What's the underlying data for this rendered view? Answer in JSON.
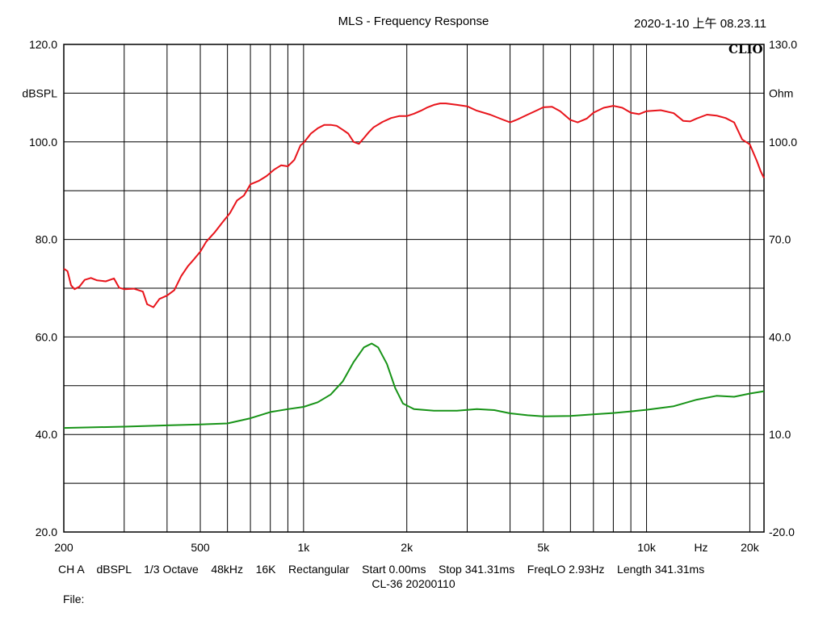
{
  "chart_data": {
    "type": "line",
    "title": "MLS - Frequency Response",
    "timestamp": "2020-1-10 上午 08.23.11",
    "brand": "CLIO",
    "x_scale": "log",
    "xlim": [
      200,
      22000
    ],
    "x_tick_labels": [
      {
        "value": 200,
        "label": "200"
      },
      {
        "value": 500,
        "label": "500"
      },
      {
        "value": 1000,
        "label": "1k"
      },
      {
        "value": 2000,
        "label": "2k"
      },
      {
        "value": 5000,
        "label": "5k"
      },
      {
        "value": 10000,
        "label": "10k"
      },
      {
        "value": 20000,
        "label": "20k"
      }
    ],
    "x_unit_label": "Hz",
    "y_left": {
      "label": "dBSPL",
      "ylim": [
        20,
        120
      ],
      "tick_labels": [
        "120.0",
        "100.0",
        "80.0",
        "60.0",
        "40.0",
        "20.0"
      ]
    },
    "y_right": {
      "label": "Ohm",
      "ylim": [
        -20,
        130
      ],
      "tick_labels": [
        "130.0",
        "100.0",
        "70.0",
        "40.0",
        "10.0",
        "-20.0"
      ]
    },
    "grid": true,
    "series": [
      {
        "axis": "left",
        "color": "#e8141b",
        "points": [
          [
            200,
            74.0
          ],
          [
            205,
            73.5
          ],
          [
            210,
            70.6
          ],
          [
            215,
            69.8
          ],
          [
            222,
            70.3
          ],
          [
            230,
            71.7
          ],
          [
            240,
            72.1
          ],
          [
            250,
            71.6
          ],
          [
            265,
            71.4
          ],
          [
            280,
            72.0
          ],
          [
            290,
            70.1
          ],
          [
            300,
            69.8
          ],
          [
            320,
            69.9
          ],
          [
            340,
            69.3
          ],
          [
            350,
            66.7
          ],
          [
            365,
            66.1
          ],
          [
            380,
            67.8
          ],
          [
            400,
            68.5
          ],
          [
            420,
            69.6
          ],
          [
            440,
            72.5
          ],
          [
            460,
            74.5
          ],
          [
            480,
            76.0
          ],
          [
            500,
            77.5
          ],
          [
            520,
            79.5
          ],
          [
            550,
            81.4
          ],
          [
            580,
            83.5
          ],
          [
            610,
            85.4
          ],
          [
            640,
            88.0
          ],
          [
            670,
            89.0
          ],
          [
            700,
            91.3
          ],
          [
            740,
            92.0
          ],
          [
            780,
            93.0
          ],
          [
            820,
            94.3
          ],
          [
            860,
            95.2
          ],
          [
            900,
            95.0
          ],
          [
            940,
            96.3
          ],
          [
            980,
            99.3
          ],
          [
            1000,
            99.8
          ],
          [
            1050,
            101.7
          ],
          [
            1100,
            102.8
          ],
          [
            1150,
            103.5
          ],
          [
            1200,
            103.5
          ],
          [
            1250,
            103.3
          ],
          [
            1300,
            102.5
          ],
          [
            1350,
            101.7
          ],
          [
            1400,
            100.0
          ],
          [
            1450,
            99.6
          ],
          [
            1500,
            100.8
          ],
          [
            1550,
            102.0
          ],
          [
            1600,
            103.0
          ],
          [
            1700,
            104.1
          ],
          [
            1800,
            104.9
          ],
          [
            1900,
            105.3
          ],
          [
            2000,
            105.3
          ],
          [
            2100,
            105.8
          ],
          [
            2200,
            106.4
          ],
          [
            2300,
            107.1
          ],
          [
            2400,
            107.6
          ],
          [
            2500,
            107.9
          ],
          [
            2600,
            107.9
          ],
          [
            2800,
            107.6
          ],
          [
            3000,
            107.3
          ],
          [
            3200,
            106.4
          ],
          [
            3500,
            105.6
          ],
          [
            3800,
            104.6
          ],
          [
            4000,
            104.0
          ],
          [
            4200,
            104.6
          ],
          [
            4500,
            105.6
          ],
          [
            4800,
            106.5
          ],
          [
            5000,
            107.1
          ],
          [
            5300,
            107.2
          ],
          [
            5600,
            106.3
          ],
          [
            6000,
            104.5
          ],
          [
            6300,
            104.0
          ],
          [
            6700,
            104.8
          ],
          [
            7000,
            106.0
          ],
          [
            7500,
            107.0
          ],
          [
            8000,
            107.4
          ],
          [
            8500,
            107.0
          ],
          [
            9000,
            106.0
          ],
          [
            9500,
            105.7
          ],
          [
            10000,
            106.3
          ],
          [
            11000,
            106.5
          ],
          [
            12000,
            105.9
          ],
          [
            12800,
            104.3
          ],
          [
            13400,
            104.2
          ],
          [
            14000,
            104.8
          ],
          [
            15000,
            105.6
          ],
          [
            16000,
            105.4
          ],
          [
            17000,
            104.9
          ],
          [
            18000,
            104.0
          ],
          [
            19000,
            100.5
          ],
          [
            20000,
            99.5
          ],
          [
            21000,
            96.0
          ],
          [
            21500,
            94.0
          ],
          [
            22000,
            92.6
          ]
        ]
      },
      {
        "axis": "right",
        "color": "#179317",
        "points": [
          [
            200,
            12.0
          ],
          [
            300,
            12.4
          ],
          [
            400,
            12.8
          ],
          [
            500,
            13.1
          ],
          [
            600,
            13.4
          ],
          [
            700,
            15.0
          ],
          [
            800,
            16.9
          ],
          [
            900,
            17.8
          ],
          [
            1000,
            18.5
          ],
          [
            1100,
            19.9
          ],
          [
            1200,
            22.3
          ],
          [
            1300,
            26.3
          ],
          [
            1400,
            32.3
          ],
          [
            1500,
            36.8
          ],
          [
            1580,
            38.0
          ],
          [
            1650,
            36.8
          ],
          [
            1750,
            31.7
          ],
          [
            1850,
            24.3
          ],
          [
            1950,
            19.5
          ],
          [
            2100,
            17.8
          ],
          [
            2400,
            17.3
          ],
          [
            2800,
            17.3
          ],
          [
            3200,
            17.8
          ],
          [
            3600,
            17.5
          ],
          [
            4000,
            16.5
          ],
          [
            4500,
            15.9
          ],
          [
            5000,
            15.6
          ],
          [
            6000,
            15.7
          ],
          [
            7000,
            16.2
          ],
          [
            8000,
            16.6
          ],
          [
            9000,
            17.1
          ],
          [
            10000,
            17.6
          ],
          [
            12000,
            18.7
          ],
          [
            14000,
            20.7
          ],
          [
            16000,
            21.9
          ],
          [
            18000,
            21.6
          ],
          [
            20000,
            22.6
          ],
          [
            22000,
            23.3
          ]
        ]
      }
    ]
  },
  "footer": {
    "info": "CH A    dBSPL    1/3 Octave    48kHz    16K    Rectangular    Start 0.00ms    Stop 341.31ms    FreqLO 2.93Hz    Length 341.31ms",
    "id": "CL-36  20200110",
    "file_label": "File:"
  }
}
